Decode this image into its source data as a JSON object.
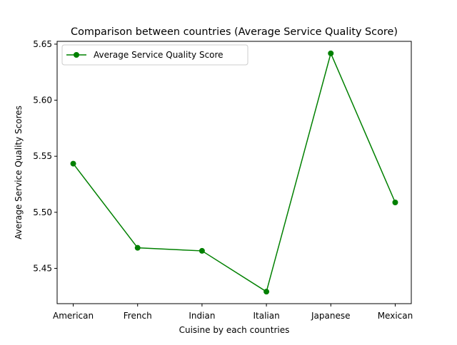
{
  "chart_data": {
    "type": "line",
    "title": "Comparison between countries (Average Service Quality Score)",
    "xlabel": "Cuisine by each countries",
    "ylabel": "Average Service Quality Scores",
    "categories": [
      "American",
      "French",
      "Indian",
      "Italian",
      "Japanese",
      "Mexican"
    ],
    "series": [
      {
        "name": "Average Service Quality Score",
        "values": [
          5.5434,
          5.4683,
          5.4656,
          5.4292,
          5.6418,
          5.5088
        ],
        "color": "#008000",
        "marker": "circle"
      }
    ],
    "ylim": [
      5.4185,
      5.6525
    ],
    "yticks": [
      5.45,
      5.5,
      5.55,
      5.6,
      5.65
    ],
    "ytick_labels": [
      "5.45",
      "5.50",
      "5.55",
      "5.60",
      "5.65"
    ],
    "grid": false,
    "legend_position": "upper-left"
  }
}
